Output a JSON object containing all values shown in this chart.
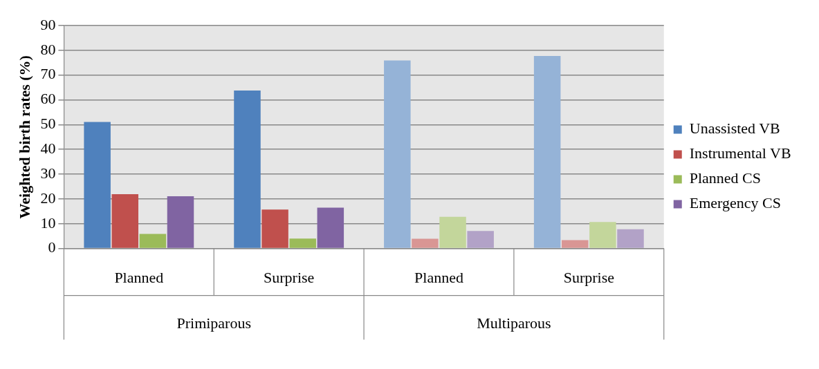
{
  "chart_data": {
    "type": "bar",
    "ylabel": "Weighted birth rates (%)",
    "categories": [
      "Planned",
      "Surprise",
      "Planned",
      "Surprise"
    ],
    "series": [
      {
        "name": "Unassisted VB",
        "color": "#4f81bd",
        "colors": [
          "#4f81bd",
          "#4f81bd",
          "#95b3d7",
          "#95b3d7"
        ],
        "values": [
          51.1,
          63.8,
          75.9,
          77.7
        ]
      },
      {
        "name": "Instrumental VB",
        "color": "#c0504d",
        "colors": [
          "#c0504d",
          "#c0504d",
          "#d99694",
          "#d99694"
        ],
        "values": [
          21.9,
          15.7,
          3.9,
          3.4
        ]
      },
      {
        "name": "Planned CS",
        "color": "#9bbb59",
        "colors": [
          "#9bbb59",
          "#9bbb59",
          "#c3d69b",
          "#c3d69b"
        ],
        "values": [
          5.9,
          4.0,
          12.8,
          10.7
        ]
      },
      {
        "name": "Emergency CS",
        "color": "#8064a2",
        "colors": [
          "#8064a2",
          "#8064a2",
          "#b2a2c7",
          "#b2a2c7"
        ],
        "values": [
          21.1,
          16.5,
          7.1,
          7.8
        ]
      }
    ],
    "annotations": [
      "Primiparous",
      "Multiparous"
    ],
    "ylim": [
      0,
      90
    ],
    "yticks": [
      0,
      10,
      20,
      30,
      40,
      50,
      60,
      70,
      80,
      90
    ],
    "grid": "y",
    "legend": "right"
  }
}
